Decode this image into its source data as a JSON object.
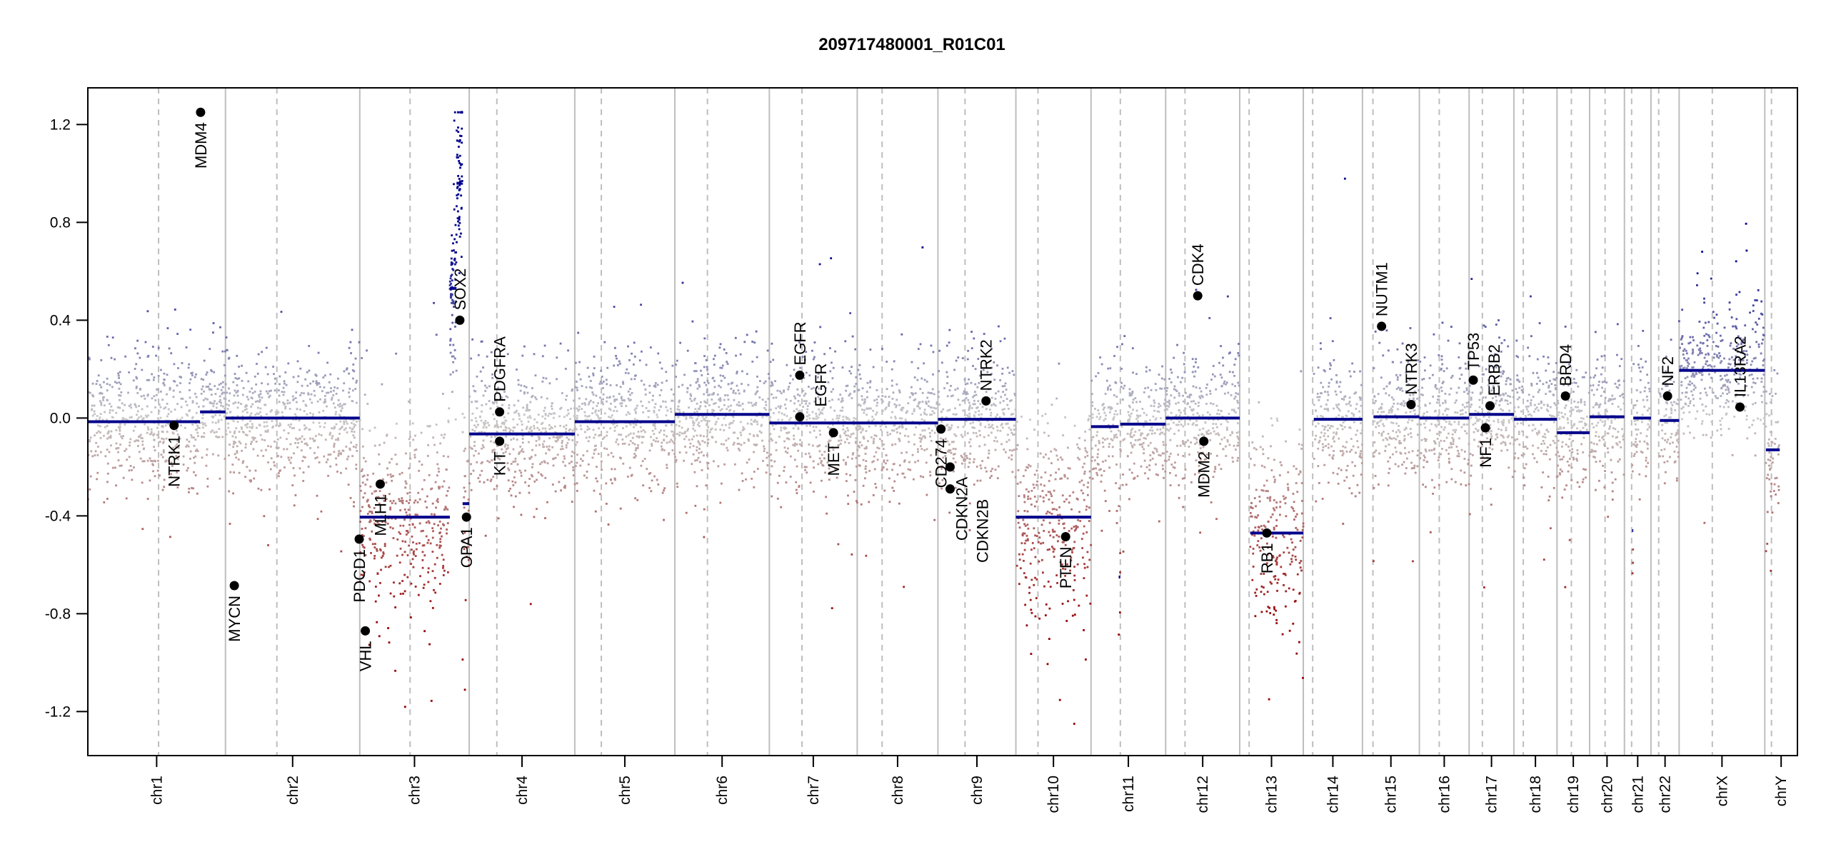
{
  "chart_data": {
    "type": "scatter",
    "title": "209717480001_R01C01",
    "xlabel": "",
    "ylabel": "",
    "ylim": [
      -1.38,
      1.35
    ],
    "grid": false,
    "y_ticks": [
      -1.2,
      -0.8,
      -0.4,
      0.0,
      0.4,
      0.8,
      1.2
    ],
    "y_tick_labels": [
      "-1.2",
      "-0.8",
      "-0.4",
      "0.0",
      "0.4",
      "0.8",
      "1.2"
    ],
    "chromosomes": [
      {
        "name": "chr1",
        "length": 249,
        "centromere": 128
      },
      {
        "name": "chr2",
        "length": 243,
        "centromere": 93
      },
      {
        "name": "chr3",
        "length": 198,
        "centromere": 91
      },
      {
        "name": "chr4",
        "length": 191,
        "centromere": 50
      },
      {
        "name": "chr5",
        "length": 181,
        "centromere": 48
      },
      {
        "name": "chr6",
        "length": 171,
        "centromere": 59
      },
      {
        "name": "chr7",
        "length": 159,
        "centromere": 59
      },
      {
        "name": "chr8",
        "length": 146,
        "centromere": 45
      },
      {
        "name": "chr9",
        "length": 141,
        "centromere": 49
      },
      {
        "name": "chr10",
        "length": 136,
        "centromere": 40
      },
      {
        "name": "chr11",
        "length": 135,
        "centromere": 53
      },
      {
        "name": "chr12",
        "length": 134,
        "centromere": 35
      },
      {
        "name": "chr13",
        "length": 115,
        "centromere": 17
      },
      {
        "name": "chr14",
        "length": 107,
        "centromere": 17
      },
      {
        "name": "chr15",
        "length": 103,
        "centromere": 19
      },
      {
        "name": "chr16",
        "length": 90,
        "centromere": 36
      },
      {
        "name": "chr17",
        "length": 81,
        "centromere": 24
      },
      {
        "name": "chr18",
        "length": 78,
        "centromere": 17
      },
      {
        "name": "chr19",
        "length": 59,
        "centromere": 26
      },
      {
        "name": "chr20",
        "length": 63,
        "centromere": 28
      },
      {
        "name": "chr21",
        "length": 48,
        "centromere": 13
      },
      {
        "name": "chr22",
        "length": 51,
        "centromere": 14
      },
      {
        "name": "chrX",
        "length": 155,
        "centromere": 60
      },
      {
        "name": "chrY",
        "length": 59,
        "centromere": 12
      }
    ],
    "segments": [
      {
        "chrom": "chr1",
        "start": 0,
        "end": 203,
        "value": -0.015
      },
      {
        "chrom": "chr1",
        "start": 203,
        "end": 249,
        "value": 0.025
      },
      {
        "chrom": "chr2",
        "start": 0,
        "end": 243,
        "value": 0.0
      },
      {
        "chrom": "chr3",
        "start": 0,
        "end": 163,
        "value": -0.405
      },
      {
        "chrom": "chr3",
        "start": 163,
        "end": 175,
        "value": 0.53
      },
      {
        "chrom": "chr3",
        "start": 175,
        "end": 184,
        "value": 0.96
      },
      {
        "chrom": "chr3",
        "start": 184,
        "end": 186,
        "value": 1.25
      },
      {
        "chrom": "chr3",
        "start": 186,
        "end": 198,
        "value": -0.35
      },
      {
        "chrom": "chr4",
        "start": 0,
        "end": 191,
        "value": -0.065
      },
      {
        "chrom": "chr5",
        "start": 0,
        "end": 181,
        "value": -0.015
      },
      {
        "chrom": "chr6",
        "start": 0,
        "end": 171,
        "value": 0.015
      },
      {
        "chrom": "chr7",
        "start": 0,
        "end": 159,
        "value": -0.02
      },
      {
        "chrom": "chr8",
        "start": 0,
        "end": 146,
        "value": -0.02
      },
      {
        "chrom": "chr9",
        "start": 0,
        "end": 141,
        "value": -0.005
      },
      {
        "chrom": "chr10",
        "start": 0,
        "end": 136,
        "value": -0.405
      },
      {
        "chrom": "chr11",
        "start": 0,
        "end": 50,
        "value": -0.035
      },
      {
        "chrom": "chr11",
        "start": 50,
        "end": 53,
        "value": -0.65
      },
      {
        "chrom": "chr11",
        "start": 53,
        "end": 135,
        "value": -0.025
      },
      {
        "chrom": "chr12",
        "start": 0,
        "end": 134,
        "value": 0.0
      },
      {
        "chrom": "chr13",
        "start": 19,
        "end": 115,
        "value": -0.47
      },
      {
        "chrom": "chr14",
        "start": 19,
        "end": 107,
        "value": -0.005
      },
      {
        "chrom": "chr15",
        "start": 20,
        "end": 103,
        "value": 0.005
      },
      {
        "chrom": "chr16",
        "start": 0,
        "end": 90,
        "value": 0.0
      },
      {
        "chrom": "chr17",
        "start": 0,
        "end": 81,
        "value": 0.015
      },
      {
        "chrom": "chr18",
        "start": 0,
        "end": 78,
        "value": -0.005
      },
      {
        "chrom": "chr19",
        "start": 0,
        "end": 59,
        "value": -0.06
      },
      {
        "chrom": "chr20",
        "start": 0,
        "end": 63,
        "value": 0.005
      },
      {
        "chrom": "chr21",
        "start": 14,
        "end": 16,
        "value": -0.46
      },
      {
        "chrom": "chr21",
        "start": 16,
        "end": 48,
        "value": 0.0
      },
      {
        "chrom": "chr22",
        "start": 16,
        "end": 51,
        "value": -0.01
      },
      {
        "chrom": "chrX",
        "start": 0,
        "end": 155,
        "value": 0.195
      },
      {
        "chrom": "chrY",
        "start": 2,
        "end": 27,
        "value": -0.13
      }
    ],
    "genes": [
      {
        "name": "MDM4",
        "chrom": "chr1",
        "pos": 204,
        "value": 1.25
      },
      {
        "name": "NTRK1",
        "chrom": "chr1",
        "pos": 156,
        "value": -0.03
      },
      {
        "name": "MYCN",
        "chrom": "chr2",
        "pos": 16,
        "value": -0.685
      },
      {
        "name": "PDCD1",
        "chrom": "chr2",
        "pos": 242,
        "value": -0.495
      },
      {
        "name": "VHL",
        "chrom": "chr3",
        "pos": 10,
        "value": -0.87
      },
      {
        "name": "MLH1",
        "chrom": "chr3",
        "pos": 37,
        "value": -0.27
      },
      {
        "name": "SOX2",
        "chrom": "chr3",
        "pos": 181,
        "value": 0.4
      },
      {
        "name": "OPA1",
        "chrom": "chr3",
        "pos": 193,
        "value": -0.405
      },
      {
        "name": "PDGFRA",
        "chrom": "chr4",
        "pos": 55,
        "value": 0.025
      },
      {
        "name": "KIT",
        "chrom": "chr4",
        "pos": 55,
        "value": -0.095
      },
      {
        "name": "EGFR",
        "chrom": "chr7",
        "pos": 55,
        "value": 0.175
      },
      {
        "name": "EGFR",
        "chrom": "chr7",
        "pos": 55,
        "value": 0.005
      },
      {
        "name": "MET",
        "chrom": "chr7",
        "pos": 116,
        "value": -0.06
      },
      {
        "name": "CD274",
        "chrom": "chr9",
        "pos": 5.5,
        "value": -0.045
      },
      {
        "name": "CDKN2A",
        "chrom": "chr9",
        "pos": 22,
        "value": -0.2
      },
      {
        "name": "CDKN2B",
        "chrom": "chr9",
        "pos": 22,
        "value": -0.29
      },
      {
        "name": "NTRK2",
        "chrom": "chr9",
        "pos": 87,
        "value": 0.07
      },
      {
        "name": "PTEN",
        "chrom": "chr10",
        "pos": 90,
        "value": -0.485
      },
      {
        "name": "CDK4",
        "chrom": "chr12",
        "pos": 58,
        "value": 0.5
      },
      {
        "name": "MDM2",
        "chrom": "chr12",
        "pos": 69,
        "value": -0.095
      },
      {
        "name": "RB1",
        "chrom": "chr13",
        "pos": 49,
        "value": -0.47
      },
      {
        "name": "NUTM1",
        "chrom": "chr15",
        "pos": 34.6,
        "value": 0.375
      },
      {
        "name": "NTRK3",
        "chrom": "chr15",
        "pos": 88,
        "value": 0.055
      },
      {
        "name": "TP53",
        "chrom": "chr17",
        "pos": 7.5,
        "value": 0.155
      },
      {
        "name": "NF1",
        "chrom": "chr17",
        "pos": 29.5,
        "value": -0.04
      },
      {
        "name": "ERBB2",
        "chrom": "chr17",
        "pos": 37.8,
        "value": 0.05
      },
      {
        "name": "BRD4",
        "chrom": "chr19",
        "pos": 15.3,
        "value": 0.09
      },
      {
        "name": "NF2",
        "chrom": "chr22",
        "pos": 30,
        "value": 0.09
      },
      {
        "name": "IL13RA2",
        "chrom": "chrX",
        "pos": 110,
        "value": 0.045
      }
    ],
    "colors": {
      "segment": "#00008b",
      "gain": "#00008c",
      "neutral": "#c8c8c8",
      "loss": "#960000",
      "chrom_border": "#bebebe",
      "gene_marker": "#000000"
    }
  }
}
